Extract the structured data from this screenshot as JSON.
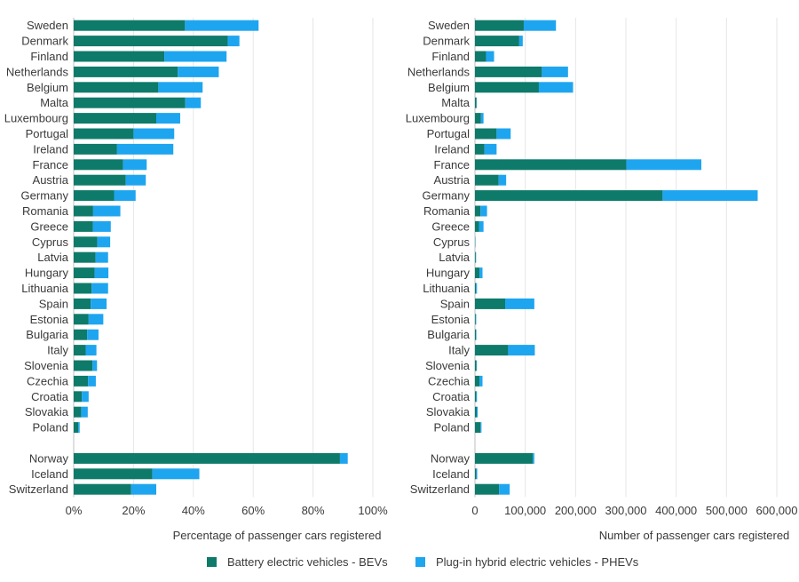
{
  "colors": {
    "bev": "#0e7a6a",
    "phev": "#1ea5f0",
    "grid": "#e6e6e6",
    "axis": "#bfbfbf"
  },
  "legend": {
    "bev_label": "Battery electric vehicles - BEVs",
    "phev_label": "Plug-in hybrid electric vehicles - PHEVs"
  },
  "chart_data": [
    {
      "type": "bar",
      "orientation": "horizontal",
      "stacked": true,
      "xlabel": "Percentage of passenger cars registered",
      "xlim": [
        0,
        100
      ],
      "xticks": [
        "0%",
        "20%",
        "40%",
        "60%",
        "80%",
        "100%"
      ],
      "grid": true,
      "categories": [
        "Sweden",
        "Denmark",
        "Finland",
        "Netherlands",
        "Belgium",
        "Malta",
        "Luxembourg",
        "Portugal",
        "Ireland",
        "France",
        "Austria",
        "Germany",
        "Romania",
        "Greece",
        "Cyprus",
        "Latvia",
        "Hungary",
        "Lithuania",
        "Spain",
        "Estonia",
        "Bulgaria",
        "Italy",
        "Slovenia",
        "Czechia",
        "Croatia",
        "Slovakia",
        "Poland",
        "",
        "Norway",
        "Iceland",
        "Switzerland"
      ],
      "series": [
        {
          "name": "Battery electric vehicles - BEVs",
          "values": [
            37.2,
            51.5,
            30.3,
            34.8,
            28.3,
            37.3,
            27.6,
            20.0,
            14.5,
            16.5,
            17.4,
            13.5,
            6.5,
            6.4,
            7.9,
            7.3,
            7.0,
            6.0,
            5.7,
            5.0,
            4.5,
            4.0,
            6.3,
            4.8,
            2.7,
            2.5,
            1.5,
            null,
            89.0,
            26.3,
            19.2
          ]
        },
        {
          "name": "Plug-in hybrid electric vehicles - PHEVs",
          "values": [
            24.6,
            3.9,
            20.8,
            13.7,
            14.8,
            5.2,
            8.0,
            13.6,
            18.8,
            7.9,
            6.7,
            7.2,
            9.1,
            6.0,
            4.3,
            4.2,
            4.6,
            5.5,
            5.3,
            4.9,
            3.8,
            3.6,
            1.5,
            2.6,
            2.3,
            2.2,
            0.5,
            null,
            2.6,
            15.7,
            8.4
          ]
        }
      ]
    },
    {
      "type": "bar",
      "orientation": "horizontal",
      "stacked": true,
      "xlabel": "Number of passenger cars registered",
      "xlim": [
        0,
        600000
      ],
      "xticks": [
        "0",
        "100,000",
        "200,000",
        "300,000",
        "400,000",
        "500,000",
        "600,000"
      ],
      "grid": true,
      "categories": [
        "Sweden",
        "Denmark",
        "Finland",
        "Netherlands",
        "Belgium",
        "Malta",
        "Luxembourg",
        "Portugal",
        "Ireland",
        "France",
        "Austria",
        "Germany",
        "Romania",
        "Greece",
        "Cyprus",
        "Latvia",
        "Hungary",
        "Lithuania",
        "Spain",
        "Estonia",
        "Bulgaria",
        "Italy",
        "Slovenia",
        "Czechia",
        "Croatia",
        "Slovakia",
        "Poland",
        "",
        "Norway",
        "Iceland",
        "Switzerland"
      ],
      "series": [
        {
          "name": "Battery electric vehicles - BEVs",
          "values": [
            97000,
            88000,
            22000,
            133000,
            127000,
            3000,
            12000,
            43000,
            19000,
            301000,
            47000,
            373000,
            11000,
            8000,
            600,
            1500,
            9000,
            2000,
            60000,
            1500,
            2000,
            66000,
            3000,
            9000,
            2500,
            3500,
            11000,
            null,
            115000,
            2800,
            48000
          ]
        },
        {
          "name": "Plug-in hybrid electric vehicles - PHEVs",
          "values": [
            64000,
            7000,
            16000,
            52000,
            68000,
            500,
            5000,
            28000,
            24000,
            149000,
            15000,
            189000,
            13000,
            9000,
            400,
            800,
            6000,
            2000,
            58000,
            1000,
            1000,
            53000,
            800,
            6000,
            1500,
            2000,
            2000,
            null,
            3000,
            1700,
            21000
          ]
        }
      ]
    }
  ]
}
